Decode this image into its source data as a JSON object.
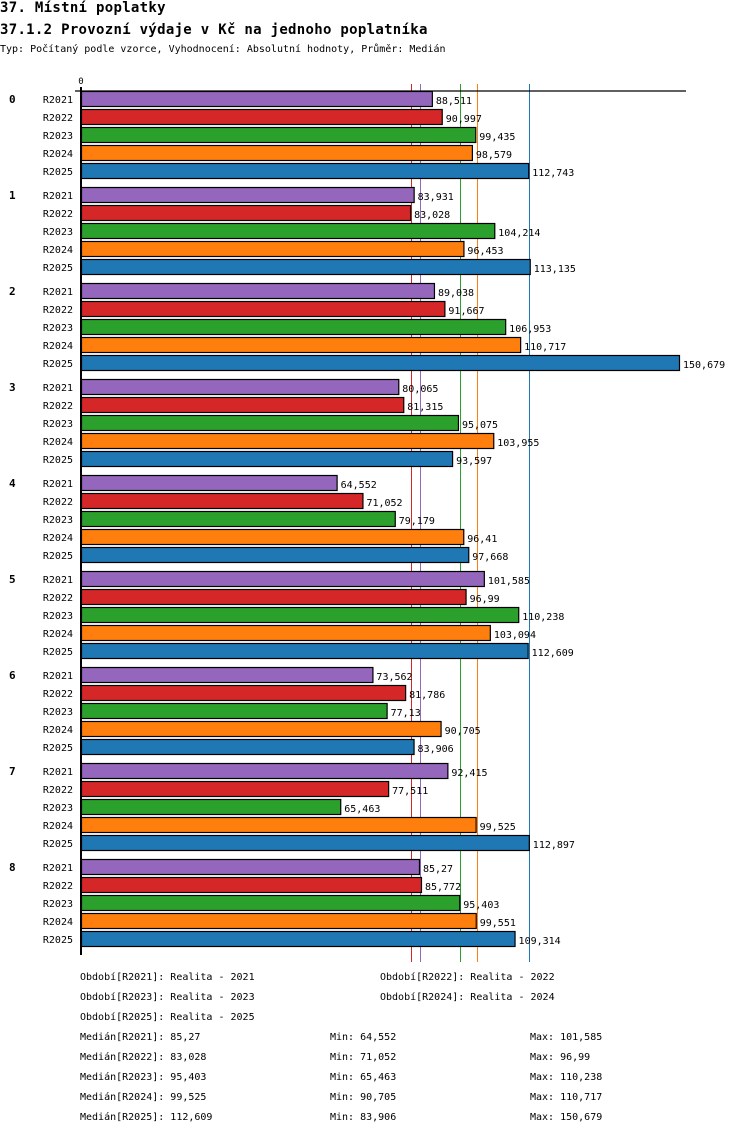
{
  "header": {
    "title": "37. Místní poplatky",
    "subtitle": "37.1.2 Provozní výdaje v Kč na jednoho poplatníka",
    "type_line": "Typ: Počítaný podle vzorce, Vyhodnocení: Absolutní hodnoty, Průměr: Medián"
  },
  "chart_data": {
    "type": "bar",
    "orientation": "horizontal",
    "title": "37.1.2 Provozní výdaje v Kč na jednoho poplatníka",
    "xlabel": "",
    "ylabel": "",
    "x_tick_labels": [
      "0"
    ],
    "xlim": [
      0,
      150679
    ],
    "grid": false,
    "categories": [
      "0",
      "1",
      "2",
      "3",
      "4",
      "5",
      "6",
      "7",
      "8"
    ],
    "series": [
      {
        "name": "R2021",
        "color": "#9467bd",
        "values": [
          88.511,
          83.931,
          89.038,
          80.065,
          64.552,
          101.585,
          73.562,
          92.415,
          85.27
        ],
        "labels": [
          "88,511",
          "83,931",
          "89,038",
          "80,065",
          "64,552",
          "101,585",
          "73,562",
          "92,415",
          "85,27"
        ]
      },
      {
        "name": "R2022",
        "color": "#d62728",
        "values": [
          90.997,
          83.028,
          91.667,
          81.315,
          71.052,
          96.99,
          81.786,
          77.511,
          85.772
        ],
        "labels": [
          "90,997",
          "83,028",
          "91,667",
          "81,315",
          "71,052",
          "96,99",
          "81,786",
          "77,511",
          "85,772"
        ]
      },
      {
        "name": "R2023",
        "color": "#2ca02c",
        "values": [
          99.435,
          104.214,
          106.953,
          95.075,
          79.179,
          110.238,
          77.13,
          65.463,
          95.403
        ],
        "labels": [
          "99,435",
          "104,214",
          "106,953",
          "95,075",
          "79,179",
          "110,238",
          "77,13",
          "65,463",
          "95,403"
        ]
      },
      {
        "name": "R2024",
        "color": "#ff7f0e",
        "values": [
          98.579,
          96.453,
          110.717,
          103.955,
          96.41,
          103.094,
          90.705,
          99.525,
          99.551
        ],
        "labels": [
          "98,579",
          "96,453",
          "110,717",
          "103,955",
          "96,41",
          "103,094",
          "90,705",
          "99,525",
          "99,551"
        ]
      },
      {
        "name": "R2025",
        "color": "#1f77b4",
        "values": [
          112.743,
          113.135,
          150.679,
          93.597,
          97.668,
          112.609,
          83.906,
          112.897,
          109.314
        ],
        "labels": [
          "112,743",
          "113,135",
          "150,679",
          "93,597",
          "97,668",
          "112,609",
          "83,906",
          "112,897",
          "109,314"
        ]
      }
    ],
    "median_lines": [
      {
        "series": "R2021",
        "value": 85.27
      },
      {
        "series": "R2022",
        "value": 83.028
      },
      {
        "series": "R2023",
        "value": 95.403
      },
      {
        "series": "R2024",
        "value": 99.525
      },
      {
        "series": "R2025",
        "value": 112.609
      }
    ],
    "annotations": []
  },
  "legend": {
    "periods": [
      "Období[R2021]: Realita - 2021",
      "Období[R2022]: Realita - 2022",
      "Období[R2023]: Realita - 2023",
      "Období[R2024]: Realita - 2024",
      "Období[R2025]: Realita - 2025"
    ],
    "stats": [
      {
        "median": "Medián[R2021]: 85,27",
        "min": "Min: 64,552",
        "max": "Max: 101,585"
      },
      {
        "median": "Medián[R2022]: 83,028",
        "min": "Min: 71,052",
        "max": "Max: 96,99"
      },
      {
        "median": "Medián[R2023]: 95,403",
        "min": "Min: 65,463",
        "max": "Max: 110,238"
      },
      {
        "median": "Medián[R2024]: 99,525",
        "min": "Min: 90,705",
        "max": "Max: 110,717"
      },
      {
        "median": "Medián[R2025]: 112,609",
        "min": "Min: 83,906",
        "max": "Max: 150,679"
      }
    ]
  }
}
